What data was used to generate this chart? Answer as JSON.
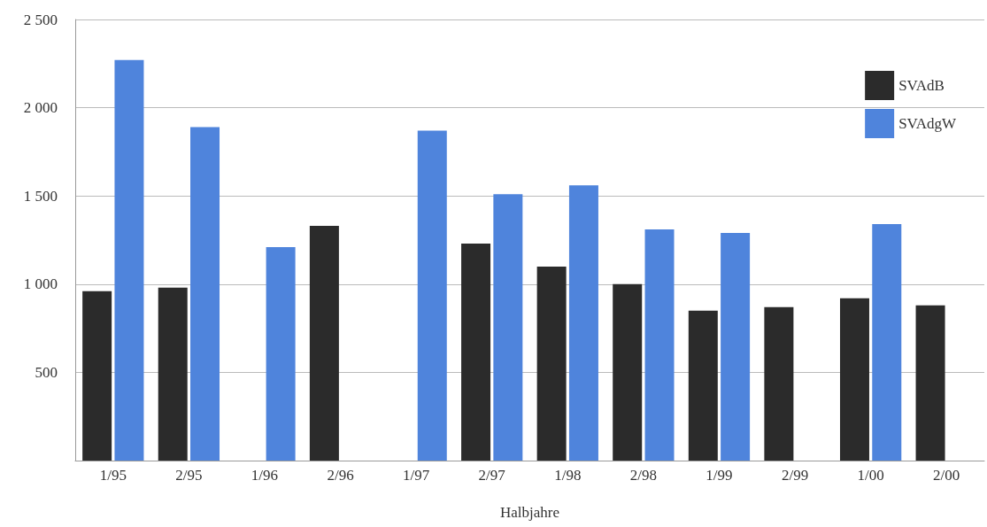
{
  "chart_data": {
    "type": "bar",
    "xlabel": "Halbjahre",
    "categories": [
      "1/95",
      "2/95",
      "1/96",
      "2/96",
      "1/97",
      "2/97",
      "1/98",
      "2/98",
      "1/99",
      "2/99",
      "1/00",
      "2/00"
    ],
    "series": [
      {
        "name": "SVAdB",
        "color": "#2b2b2b",
        "values": [
          960,
          980,
          null,
          1330,
          null,
          1230,
          1100,
          1000,
          850,
          870,
          920,
          880
        ]
      },
      {
        "name": "SVAdgW",
        "color": "#4f84dc",
        "values": [
          2270,
          1890,
          1210,
          null,
          1870,
          1510,
          1560,
          1310,
          1290,
          null,
          1340,
          null
        ]
      }
    ],
    "ylim": [
      0,
      2500
    ],
    "yticks": [
      {
        "value": 500,
        "label": "500"
      },
      {
        "value": 1000,
        "label": "1 000"
      },
      {
        "value": 1500,
        "label": "1 500"
      },
      {
        "value": 2000,
        "label": "2 000"
      },
      {
        "value": 2500,
        "label": "2 500"
      }
    ],
    "grid": "y",
    "legend": "top right"
  }
}
